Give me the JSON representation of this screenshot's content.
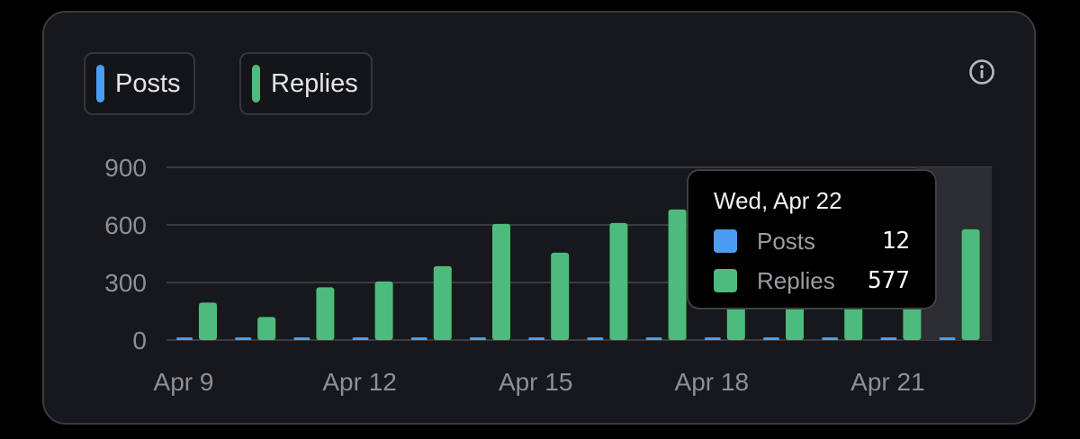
{
  "legend": [
    {
      "label": "Posts",
      "color": "#4a9df0"
    },
    {
      "label": "Replies",
      "color": "#4dbb7c"
    }
  ],
  "info_icon": "info-circle-icon",
  "tooltip": {
    "date": "Wed, Apr 22",
    "rows": [
      {
        "label": "Posts",
        "value": "12",
        "color": "#4a9df0"
      },
      {
        "label": "Replies",
        "value": "577",
        "color": "#4dbb7c"
      }
    ]
  },
  "chart_data": {
    "type": "bar",
    "categories": [
      "Apr 9",
      "Apr 10",
      "Apr 11",
      "Apr 12",
      "Apr 13",
      "Apr 14",
      "Apr 15",
      "Apr 16",
      "Apr 17",
      "Apr 18",
      "Apr 19",
      "Apr 20",
      "Apr 21",
      "Apr 22"
    ],
    "x_tick_labels": [
      "Apr 9",
      "Apr 12",
      "Apr 15",
      "Apr 18",
      "Apr 21"
    ],
    "series": [
      {
        "name": "Posts",
        "color": "#4a9df0",
        "values": [
          8,
          6,
          10,
          8,
          10,
          12,
          12,
          14,
          13,
          9,
          12,
          11,
          11,
          12
        ]
      },
      {
        "name": "Replies",
        "color": "#4dbb7c",
        "values": [
          195,
          120,
          275,
          305,
          385,
          605,
          455,
          610,
          680,
          660,
          670,
          580,
          470,
          577
        ]
      }
    ],
    "ylim": [
      0,
      900
    ],
    "y_ticks": [
      0,
      300,
      600,
      900
    ],
    "grid": true,
    "highlighted_category": "Apr 22",
    "xlabel": "",
    "ylabel": ""
  }
}
